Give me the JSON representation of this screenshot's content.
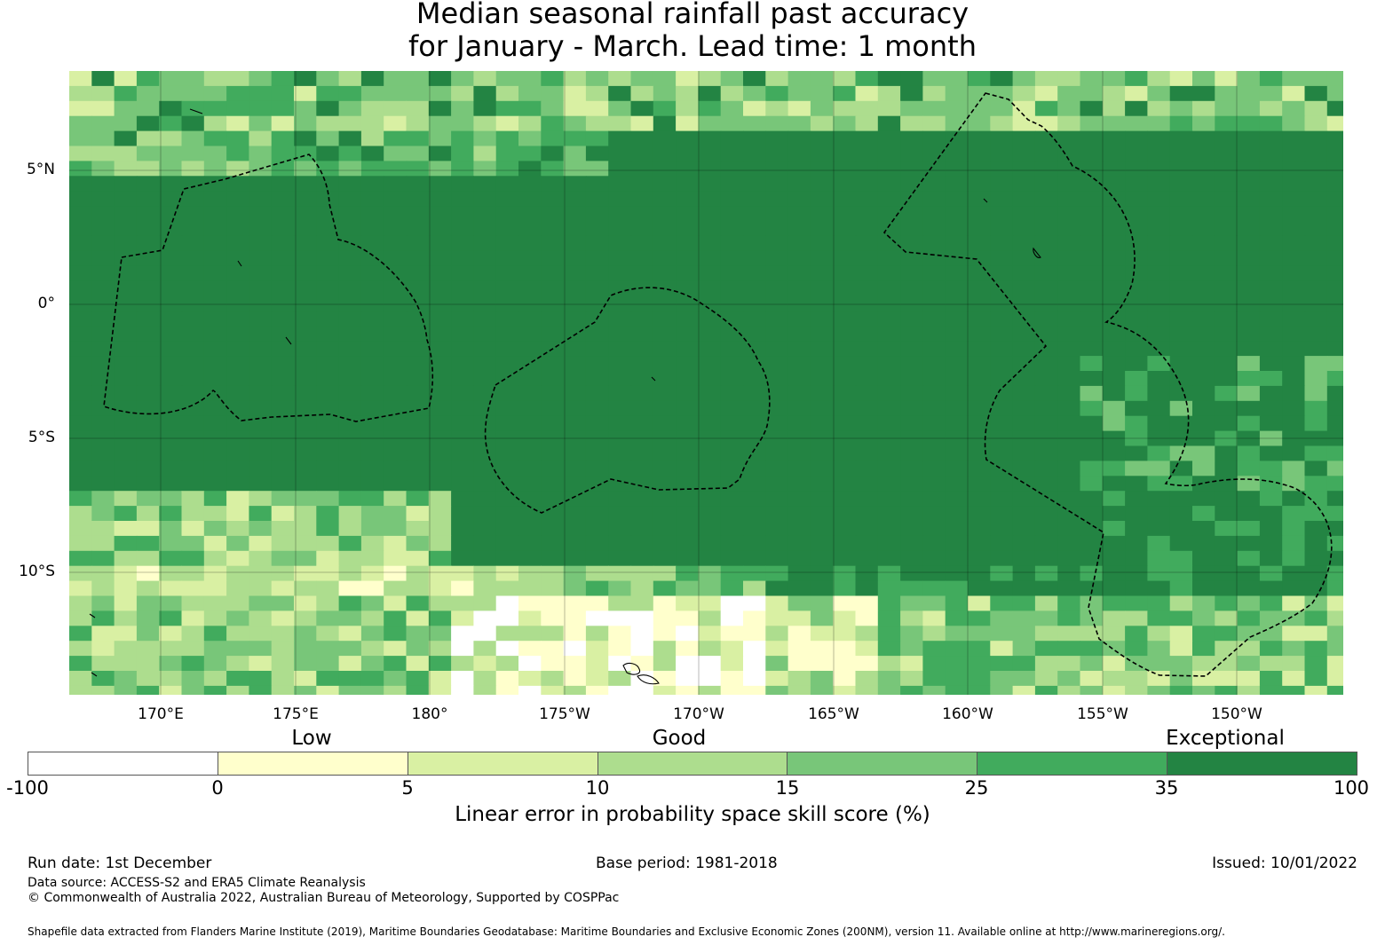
{
  "title": {
    "line1": "Median seasonal rainfall past accuracy",
    "line2": "for January - March. Lead time: 1 month"
  },
  "map": {
    "lat_labels": [
      "5°N",
      "0°",
      "5°S",
      "10°S"
    ],
    "lon_labels": [
      "170°E",
      "175°E",
      "180°",
      "175°W",
      "170°W",
      "165°W",
      "160°W",
      "155°W",
      "150°W"
    ],
    "icons": [
      "eez-boundary-dashed-line",
      "coastline"
    ]
  },
  "legend": {
    "categories": [
      "Low",
      "Good",
      "Exceptional"
    ],
    "ticks": [
      "-100",
      "0",
      "5",
      "10",
      "15",
      "25",
      "35",
      "100"
    ],
    "colors": [
      "#ffffff",
      "#ffffcc",
      "#d9f0a3",
      "#addd8e",
      "#78c679",
      "#41ab5d",
      "#238443"
    ],
    "label": "Linear error in probability space skill score (%)"
  },
  "footer": {
    "run_date": "Run date: 1st December",
    "base_period": "Base period: 1981-2018",
    "issued": "Issued: 10/01/2022",
    "data_source": "Data source: ACCESS-S2 and ERA5 Climate Reanalysis",
    "copyright": "© Commonwealth of Australia 2022, Australian Bureau of Meteorology, Supported by COSPPac",
    "shapefile": "Shapefile data extracted from Flanders Marine Institute (2019), Maritime Boundaries Geodatabase: Maritime Boundaries and Exclusive Economic Zones (200NM), version 11. Available online at http://www.marineregions.org/."
  }
}
